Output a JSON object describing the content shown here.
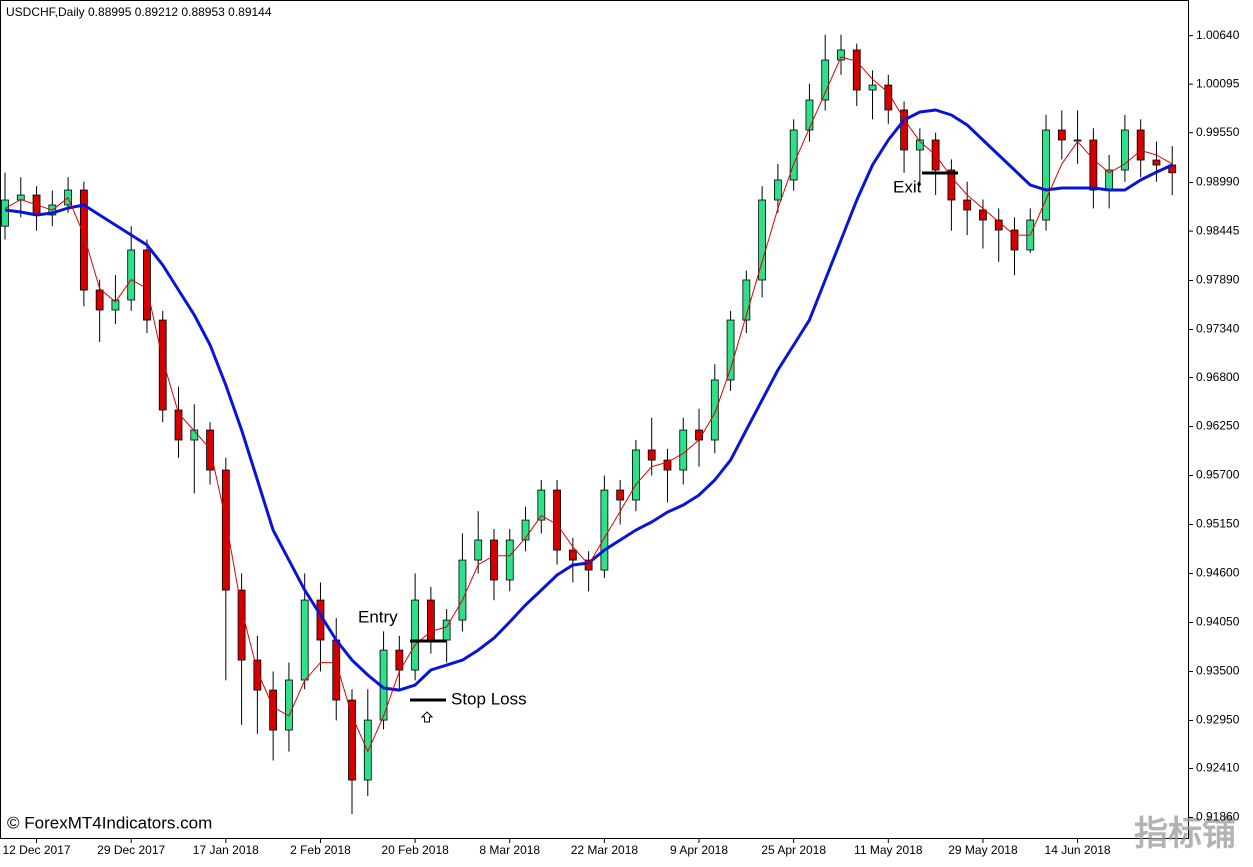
{
  "chart_data": {
    "type": "candlestick",
    "title": "USDCHF,Daily  0.88995 0.89212 0.88953 0.89144",
    "categories": [
      null,
      null,
      "12 Dec 2017",
      null,
      null,
      null,
      null,
      null,
      "29 Dec 2017",
      null,
      null,
      null,
      null,
      null,
      "17 Jan 2018",
      null,
      null,
      null,
      null,
      null,
      "2 Feb 2018",
      null,
      null,
      null,
      null,
      null,
      "20 Feb 2018",
      null,
      null,
      null,
      null,
      null,
      "8 Mar 2018",
      null,
      null,
      null,
      null,
      null,
      "22 Mar 2018",
      null,
      null,
      null,
      null,
      null,
      "9 Apr 2018",
      null,
      null,
      null,
      null,
      null,
      "25 Apr 2018",
      null,
      null,
      null,
      null,
      null,
      "11 May 2018",
      null,
      null,
      null,
      null,
      null,
      "29 May 2018",
      null,
      null,
      null,
      null,
      null,
      "14 Jun 2018",
      null,
      null,
      null,
      null,
      null,
      null
    ],
    "open": [
      0.985,
      0.98794,
      0.9885,
      0.98626,
      0.98738,
      0.98906,
      0.97783,
      0.97559,
      0.97671,
      0.98233,
      0.97446,
      0.96436,
      0.96099,
      0.96211,
      0.95762,
      0.94414,
      0.93628,
      0.93291,
      0.92842,
      0.93404,
      0.94302,
      0.93853,
      0.93179,
      0.92281,
      0.92954,
      0.9374,
      0.93516,
      0.94302,
      0.93853,
      0.94077,
      0.94751,
      0.94976,
      0.94527,
      0.94976,
      0.952,
      0.95537,
      0.94863,
      0.94751,
      0.94639,
      0.95537,
      0.95425,
      0.95987,
      0.95874,
      0.95762,
      0.96211,
      0.96099,
      0.96773,
      0.97446,
      0.97896,
      0.98794,
      0.99019,
      0.9958,
      0.99917,
      1.00366,
      1.00479,
      1.00029,
      1.00085,
      0.99805,
      0.99356,
      0.99468,
      0.99131,
      0.98794,
      0.98682,
      0.98569,
      0.98457,
      0.98233,
      0.98569,
      0.9958,
      0.99468,
      0.99468,
      0.98906,
      0.99131,
      0.9958,
      0.99243,
      0.99187
    ],
    "high": [
      0.991,
      0.9905,
      0.9895,
      0.989,
      0.9905,
      0.99,
      0.979,
      0.9795,
      0.985,
      0.9835,
      0.9755,
      0.967,
      0.965,
      0.963,
      0.959,
      0.946,
      0.939,
      0.935,
      0.936,
      0.946,
      0.945,
      0.941,
      0.933,
      0.933,
      0.9395,
      0.939,
      0.946,
      0.9445,
      0.942,
      0.9505,
      0.953,
      0.951,
      0.951,
      0.9535,
      0.9565,
      0.9565,
      0.95,
      0.9485,
      0.957,
      0.9565,
      0.961,
      0.9635,
      0.96,
      0.9635,
      0.9645,
      0.9695,
      0.9755,
      0.98,
      0.9895,
      0.992,
      0.997,
      1.001,
      1.0065,
      1.0065,
      1.0055,
      1.0025,
      1.002,
      0.999,
      0.996,
      0.9955,
      0.9925,
      0.99,
      0.988,
      0.987,
      0.986,
      0.987,
      0.9975,
      0.998,
      0.998,
      0.996,
      0.993,
      0.9975,
      0.997,
      0.9945,
      0.994
    ],
    "low": [
      0.9835,
      0.986,
      0.9845,
      0.985,
      0.9865,
      0.976,
      0.972,
      0.974,
      0.9755,
      0.973,
      0.963,
      0.959,
      0.955,
      0.956,
      0.934,
      0.929,
      0.928,
      0.925,
      0.926,
      0.933,
      0.935,
      0.9295,
      0.919,
      0.921,
      0.9285,
      0.933,
      0.934,
      0.937,
      0.936,
      0.9395,
      0.946,
      0.943,
      0.944,
      0.9485,
      0.9505,
      0.947,
      0.945,
      0.944,
      0.9455,
      0.9515,
      0.953,
      0.957,
      0.954,
      0.956,
      0.958,
      0.9595,
      0.9665,
      0.973,
      0.977,
      0.9865,
      0.989,
      0.9945,
      0.998,
      1.002,
      0.9985,
      0.997,
      0.9965,
      0.991,
      0.9895,
      0.9885,
      0.9845,
      0.984,
      0.9825,
      0.981,
      0.9795,
      0.982,
      0.9845,
      0.9925,
      0.992,
      0.987,
      0.987,
      0.99,
      0.9905,
      0.99,
      0.9885
    ],
    "close": [
      0.98794,
      0.9885,
      0.98626,
      0.98738,
      0.98906,
      0.97783,
      0.97559,
      0.97671,
      0.98233,
      0.97446,
      0.96436,
      0.96099,
      0.96211,
      0.95762,
      0.94414,
      0.93628,
      0.93291,
      0.92842,
      0.93404,
      0.94302,
      0.93853,
      0.93179,
      0.92281,
      0.92954,
      0.9374,
      0.93516,
      0.94302,
      0.93853,
      0.94077,
      0.94751,
      0.94976,
      0.94527,
      0.94976,
      0.952,
      0.95537,
      0.94863,
      0.94751,
      0.94639,
      0.95537,
      0.95425,
      0.95987,
      0.95874,
      0.95762,
      0.96211,
      0.96099,
      0.96773,
      0.97446,
      0.97896,
      0.98794,
      0.99019,
      0.9958,
      0.99917,
      1.00366,
      1.00479,
      1.00029,
      1.00085,
      0.99805,
      0.99356,
      0.99468,
      0.99131,
      0.98794,
      0.98682,
      0.98569,
      0.98457,
      0.98233,
      0.98569,
      0.9958,
      0.99468,
      0.99468,
      0.98906,
      0.99131,
      0.9958,
      0.99243,
      0.99187,
      0.991
    ],
    "up_color": "#2ee08a",
    "down_color": "#d40000",
    "lines": [
      {
        "color": "#0a14d8",
        "values": [
          0.98682,
          0.98659,
          0.98626,
          0.98648,
          0.98704,
          0.98738,
          0.98626,
          0.98513,
          0.98401,
          0.98289,
          0.98064,
          0.97783,
          0.97503,
          0.97166,
          0.96716,
          0.96211,
          0.9565,
          0.95088,
          0.94751,
          0.94414,
          0.94134,
          0.93853,
          0.93628,
          0.9346,
          0.93314,
          0.93291,
          0.93347,
          0.93516,
          0.93572,
          0.93628,
          0.9374,
          0.93875,
          0.94055,
          0.94246,
          0.94414,
          0.94583,
          0.94695,
          0.94718,
          0.94863,
          0.94976,
          0.95088,
          0.95178,
          0.9529,
          0.95369,
          0.95481,
          0.9565,
          0.95874,
          0.96211,
          0.96548,
          0.96885,
          0.97166,
          0.97446,
          0.97896,
          0.98345,
          0.98794,
          0.99187,
          0.99468,
          0.99692,
          0.99782,
          0.99805,
          0.99749,
          0.99636,
          0.99468,
          0.99299,
          0.99131,
          0.98962,
          0.98906,
          0.98929,
          0.98929,
          0.98929,
          0.98906,
          0.98906,
          0.99019,
          0.99108,
          0.99187
        ]
      },
      {
        "color": "#e00000",
        "values": [
          0.987,
          0.988,
          0.9874,
          0.9868,
          0.9882,
          0.984,
          0.978,
          0.9765,
          0.979,
          0.978,
          0.97,
          0.964,
          0.962,
          0.96,
          0.952,
          0.942,
          0.935,
          0.931,
          0.93,
          0.934,
          0.936,
          0.936,
          0.93,
          0.926,
          0.93,
          0.935,
          0.938,
          0.9395,
          0.94,
          0.943,
          0.947,
          0.948,
          0.948,
          0.95,
          0.9525,
          0.9515,
          0.949,
          0.947,
          0.95,
          0.953,
          0.956,
          0.958,
          0.9585,
          0.9595,
          0.961,
          0.964,
          0.969,
          0.975,
          0.981,
          0.987,
          0.992,
          0.996,
          1.0,
          1.004,
          1.0035,
          1.0015,
          1.0,
          0.997,
          0.9945,
          0.993,
          0.9905,
          0.9885,
          0.987,
          0.9855,
          0.984,
          0.984,
          0.988,
          0.992,
          0.9945,
          0.9925,
          0.991,
          0.992,
          0.9935,
          0.993,
          0.992
        ]
      }
    ],
    "ylim": [
      0.9163,
      1.0104
    ],
    "yticks": [
      {
        "value": 1.0064,
        "label": "1.00640"
      },
      {
        "value": 1.00095,
        "label": "1.00095"
      },
      {
        "value": 0.9955,
        "label": "0.99550"
      },
      {
        "value": 0.9899,
        "label": "0.98990"
      },
      {
        "value": 0.98445,
        "label": "0.98445"
      },
      {
        "value": 0.9789,
        "label": "0.97890"
      },
      {
        "value": 0.9734,
        "label": "0.97340"
      },
      {
        "value": 0.968,
        "label": "0.96800"
      },
      {
        "value": 0.9625,
        "label": "0.96250"
      },
      {
        "value": 0.957,
        "label": "0.95700"
      },
      {
        "value": 0.9515,
        "label": "0.95150"
      },
      {
        "value": 0.946,
        "label": "0.94600"
      },
      {
        "value": 0.9405,
        "label": "0.94050"
      },
      {
        "value": 0.935,
        "label": "0.93500"
      },
      {
        "value": 0.9295,
        "label": "0.92950"
      },
      {
        "value": 0.9241,
        "label": "0.92410"
      },
      {
        "value": 0.9186,
        "label": "0.91860"
      }
    ],
    "annotations": {
      "entry": "Entry",
      "stop_loss": "Stop Loss",
      "exit": "Exit"
    },
    "copyright": "© ForexMT4Indicators.com",
    "watermark": "指标铺"
  }
}
